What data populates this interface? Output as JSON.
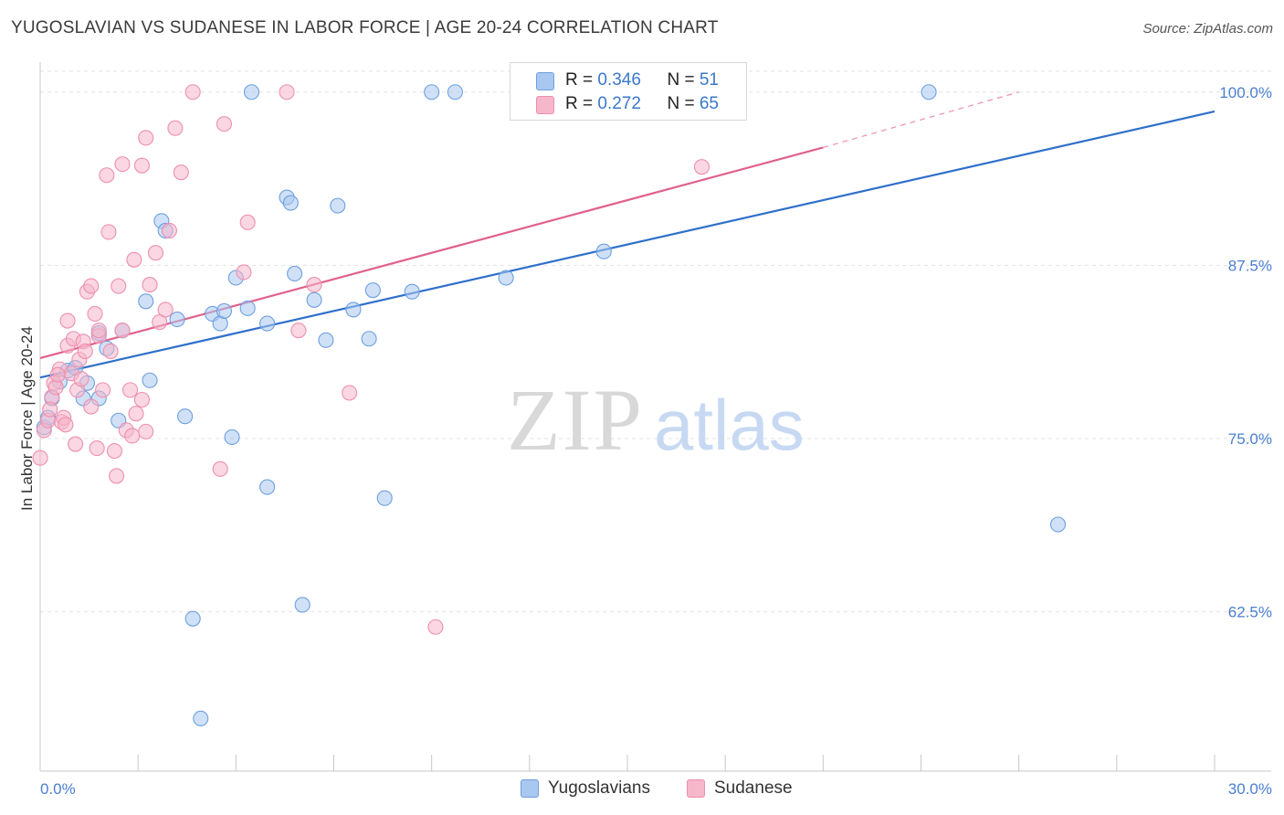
{
  "title": "YUGOSLAVIAN VS SUDANESE IN LABOR FORCE | AGE 20-24 CORRELATION CHART",
  "source": "Source: ZipAtlas.com",
  "watermark": {
    "zip": "ZIP",
    "atlas": "atlas"
  },
  "legend": {
    "rows": [
      {
        "r_label": "R = ",
        "r_value": "0.346",
        "n_label": "N = ",
        "n_value": "51",
        "color": "#a9c8f0"
      },
      {
        "r_label": "R = ",
        "r_value": "0.272",
        "n_label": "N = ",
        "n_value": "65",
        "color": "#f6b7cb"
      }
    ]
  },
  "bottom_legend": [
    {
      "label": "Yugoslavians",
      "color": "#a9c8f0"
    },
    {
      "label": "Sudanese",
      "color": "#f6b7cb"
    }
  ],
  "chart_data": {
    "type": "scatter",
    "ylabel": "In Labor Force | Age 20-24",
    "xlim": [
      0,
      30
    ],
    "ylim": [
      51,
      101.5
    ],
    "x_tick_labels": [
      "0.0%",
      "30.0%"
    ],
    "y_ticks": [
      62.5,
      75.0,
      87.5,
      100.0
    ],
    "y_tick_labels": [
      "62.5%",
      "75.0%",
      "87.5%",
      "100.0%"
    ],
    "grid": true,
    "series": [
      {
        "name": "Yugoslavians",
        "color": "#6d9fe0",
        "fill": "#a9c8f0",
        "line_color": "#2f6fcb",
        "trend": {
          "x0": 0,
          "y0": 79.4,
          "x1": 30,
          "y1": 98.6
        },
        "points": [
          [
            0.1,
            75.8
          ],
          [
            0.3,
            77.9
          ],
          [
            0.5,
            79.1
          ],
          [
            0.7,
            79.9
          ],
          [
            0.9,
            80.1
          ],
          [
            1.1,
            77.9
          ],
          [
            1.2,
            79.0
          ],
          [
            1.5,
            82.6
          ],
          [
            1.5,
            77.9
          ],
          [
            1.7,
            81.5
          ],
          [
            2.0,
            76.3
          ],
          [
            2.1,
            82.8
          ],
          [
            2.7,
            84.9
          ],
          [
            2.8,
            79.2
          ],
          [
            3.1,
            90.7
          ],
          [
            3.2,
            90.0
          ],
          [
            3.5,
            83.6
          ],
          [
            3.7,
            76.6
          ],
          [
            3.9,
            62.0
          ],
          [
            4.1,
            54.8
          ],
          [
            4.4,
            84.0
          ],
          [
            4.6,
            83.3
          ],
          [
            4.7,
            84.2
          ],
          [
            4.9,
            75.1
          ],
          [
            5.0,
            86.6
          ],
          [
            5.3,
            84.4
          ],
          [
            5.4,
            100.0
          ],
          [
            5.8,
            71.5
          ],
          [
            5.8,
            83.3
          ],
          [
            6.3,
            92.4
          ],
          [
            6.4,
            92.0
          ],
          [
            6.5,
            86.9
          ],
          [
            6.7,
            63.0
          ],
          [
            7.0,
            85.0
          ],
          [
            7.3,
            82.1
          ],
          [
            7.6,
            91.8
          ],
          [
            8.0,
            84.3
          ],
          [
            8.4,
            82.2
          ],
          [
            8.5,
            85.7
          ],
          [
            8.8,
            70.7
          ],
          [
            9.5,
            85.6
          ],
          [
            10.0,
            100.0
          ],
          [
            10.6,
            100.0
          ],
          [
            11.9,
            86.6
          ],
          [
            13.6,
            100.0
          ],
          [
            14.4,
            88.5
          ],
          [
            15.6,
            100.0
          ],
          [
            22.7,
            100.0
          ],
          [
            26.0,
            68.8
          ],
          [
            0.2,
            76.5
          ],
          [
            14.6,
            100.0
          ]
        ]
      },
      {
        "name": "Sudanese",
        "color": "#ee8fae",
        "fill": "#f6b7cb",
        "line_color": "#e0608c",
        "trend": {
          "x0": 0,
          "y0": 80.8,
          "x1": 20,
          "y1": 96.0
        },
        "trend_dashed": {
          "x0": 20,
          "y0": 96.0,
          "x1": 25,
          "y1": 100.0
        },
        "points": [
          [
            0.0,
            73.6
          ],
          [
            0.1,
            75.6
          ],
          [
            0.2,
            76.3
          ],
          [
            0.3,
            78.0
          ],
          [
            0.35,
            79.0
          ],
          [
            0.4,
            78.7
          ],
          [
            0.5,
            80.0
          ],
          [
            0.55,
            76.2
          ],
          [
            0.6,
            76.5
          ],
          [
            0.65,
            76.0
          ],
          [
            0.7,
            83.5
          ],
          [
            0.7,
            81.7
          ],
          [
            0.8,
            79.7
          ],
          [
            0.85,
            82.2
          ],
          [
            0.9,
            74.6
          ],
          [
            0.95,
            78.5
          ],
          [
            1.0,
            80.7
          ],
          [
            1.1,
            82.0
          ],
          [
            1.15,
            81.3
          ],
          [
            1.2,
            85.6
          ],
          [
            1.3,
            86.0
          ],
          [
            1.3,
            77.3
          ],
          [
            1.4,
            84.0
          ],
          [
            1.45,
            74.3
          ],
          [
            1.5,
            82.4
          ],
          [
            1.5,
            82.8
          ],
          [
            1.6,
            78.5
          ],
          [
            1.7,
            94.0
          ],
          [
            1.75,
            89.9
          ],
          [
            1.8,
            81.3
          ],
          [
            1.9,
            74.1
          ],
          [
            1.95,
            72.3
          ],
          [
            2.0,
            86.0
          ],
          [
            2.1,
            94.8
          ],
          [
            2.1,
            82.8
          ],
          [
            2.2,
            75.6
          ],
          [
            2.3,
            78.5
          ],
          [
            2.35,
            75.2
          ],
          [
            2.4,
            87.9
          ],
          [
            2.6,
            94.7
          ],
          [
            2.6,
            77.8
          ],
          [
            2.7,
            96.7
          ],
          [
            2.7,
            75.5
          ],
          [
            2.8,
            86.1
          ],
          [
            2.95,
            88.4
          ],
          [
            3.05,
            83.4
          ],
          [
            3.2,
            84.3
          ],
          [
            3.3,
            90.0
          ],
          [
            3.45,
            97.4
          ],
          [
            3.6,
            94.2
          ],
          [
            3.9,
            100.0
          ],
          [
            4.6,
            72.8
          ],
          [
            4.7,
            97.7
          ],
          [
            5.2,
            87.0
          ],
          [
            5.3,
            90.6
          ],
          [
            6.3,
            100.0
          ],
          [
            6.6,
            82.8
          ],
          [
            7.0,
            86.1
          ],
          [
            7.9,
            78.3
          ],
          [
            10.1,
            61.4
          ],
          [
            16.9,
            94.6
          ],
          [
            0.25,
            77.1
          ],
          [
            1.05,
            79.3
          ],
          [
            2.45,
            76.8
          ],
          [
            0.45,
            79.6
          ]
        ]
      }
    ]
  }
}
